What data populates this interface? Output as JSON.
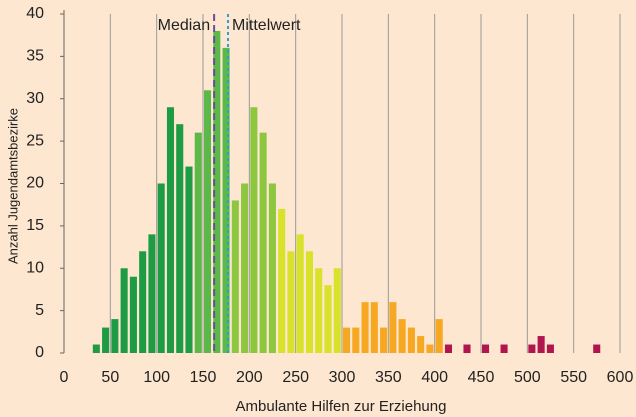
{
  "chart_data": {
    "type": "histogram",
    "xlabel": "Ambulante Hilfen zur Erziehung",
    "ylabel": "Anzahl Jugendamtsbezirke",
    "bins": [
      30,
      40,
      50,
      60,
      70,
      80,
      90,
      100,
      110,
      120,
      130,
      140,
      150,
      160,
      170,
      180,
      190,
      200,
      210,
      220,
      230,
      240,
      250,
      260,
      270,
      280,
      290,
      300,
      310,
      320,
      330,
      340,
      350,
      360,
      370,
      380,
      390,
      400,
      410,
      420,
      430,
      440,
      450,
      460,
      470,
      480,
      490,
      500,
      510,
      520,
      530,
      540,
      550,
      560,
      570,
      580
    ],
    "values": [
      1,
      3,
      4,
      10,
      9,
      12,
      14,
      20,
      29,
      27,
      22,
      26,
      31,
      38,
      36,
      18,
      20,
      29,
      26,
      20,
      17,
      12,
      14,
      12,
      10,
      8,
      10,
      3,
      3,
      6,
      6,
      3,
      6,
      4,
      3,
      2,
      1,
      4,
      1,
      0,
      1,
      0,
      1,
      0,
      1,
      0,
      0,
      1,
      2,
      1,
      0,
      0,
      0,
      0,
      1
    ],
    "colors": [
      "#1e9b45",
      "#1e9b45",
      "#1e9b45",
      "#1e9b45",
      "#1e9b45",
      "#1e9b45",
      "#1e9b45",
      "#1e9b45",
      "#1e9b45",
      "#1e9b45",
      "#1e9b45",
      "#5cb849",
      "#5cb849",
      "#5cb849",
      "#5cb849",
      "#8dc63f",
      "#8dc63f",
      "#8dc63f",
      "#8dc63f",
      "#8dc63f",
      "#d8e22a",
      "#d8e22a",
      "#d8e22a",
      "#d8e22a",
      "#d8e22a",
      "#d8e22a",
      "#d8e22a",
      "#f7a823",
      "#f7a823",
      "#f7a823",
      "#f7a823",
      "#f7a823",
      "#f7a823",
      "#f7a823",
      "#f7a823",
      "#f7a823",
      "#f7a823",
      "#f7a823",
      "#b0154e",
      "#b0154e",
      "#b0154e",
      "#b0154e",
      "#b0154e",
      "#b0154e",
      "#b0154e",
      "#b0154e",
      "#b0154e",
      "#b0154e",
      "#b0154e",
      "#b0154e",
      "#b0154e",
      "#b0154e",
      "#b0154e",
      "#b0154e",
      "#b0154e"
    ],
    "xlim": [
      0,
      600
    ],
    "ylim": [
      0,
      40
    ],
    "xticks": [
      0,
      50,
      100,
      150,
      200,
      250,
      300,
      350,
      400,
      450,
      500,
      550,
      600
    ],
    "yticks": [
      0,
      5,
      10,
      15,
      20,
      25,
      30,
      35,
      40
    ],
    "grid": true,
    "median": {
      "value": 162,
      "label": "Median",
      "color": "#6a4c9c"
    },
    "mean": {
      "value": 177,
      "label": "Mittelwert",
      "color": "#2a9fd8"
    }
  }
}
